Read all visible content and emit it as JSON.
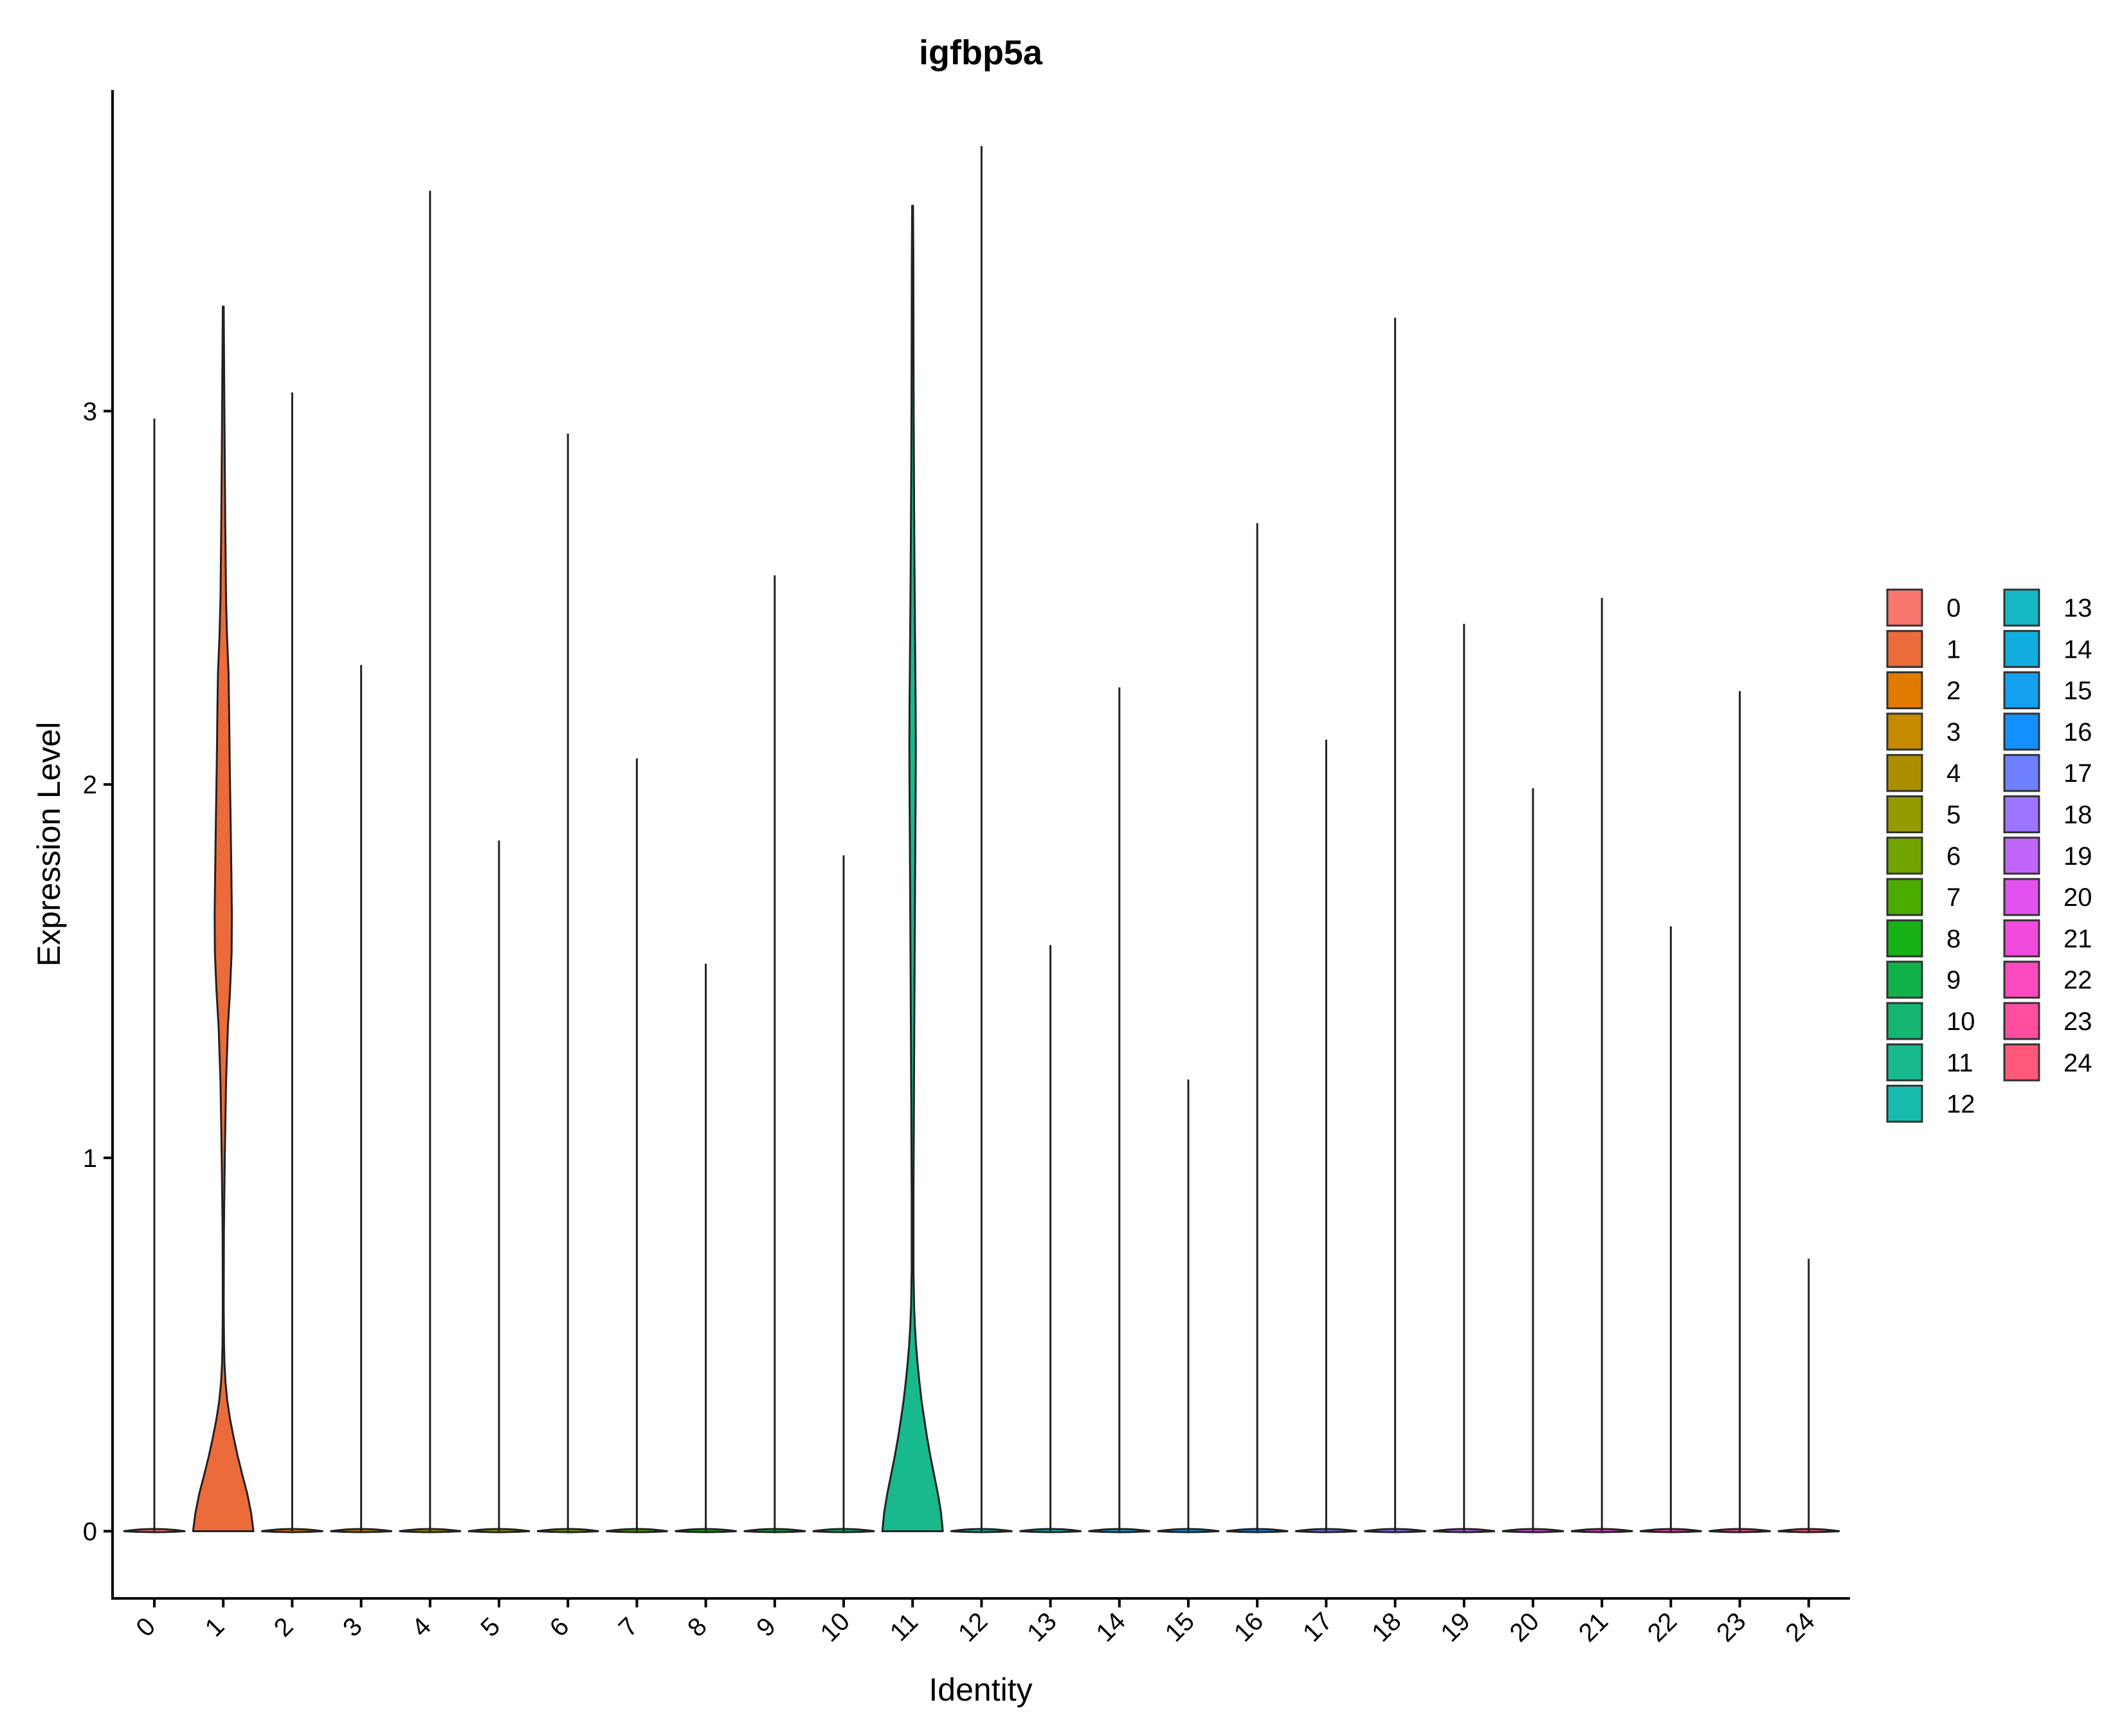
{
  "chart_data": {
    "type": "violin",
    "title": "igfbp5a",
    "xlabel": "Identity",
    "ylabel": "Expression Level",
    "ylim": [
      -0.18,
      3.86
    ],
    "yticks": [
      0,
      1,
      2,
      3
    ],
    "grid": false,
    "legend_position": "right",
    "categories": [
      "0",
      "1",
      "2",
      "3",
      "4",
      "5",
      "6",
      "7",
      "8",
      "9",
      "10",
      "11",
      "12",
      "13",
      "14",
      "15",
      "16",
      "17",
      "18",
      "19",
      "20",
      "21",
      "22",
      "23",
      "24"
    ],
    "max_values": [
      2.98,
      3.28,
      3.05,
      2.32,
      3.59,
      1.85,
      2.94,
      2.07,
      1.52,
      2.56,
      1.81,
      3.55,
      3.71,
      1.57,
      2.26,
      1.21,
      2.7,
      2.12,
      3.25,
      2.43,
      1.99,
      2.5,
      1.62,
      2.25,
      0.73
    ],
    "colors": [
      "#F8766D",
      "#EC6B3B",
      "#E07B00",
      "#C58A00",
      "#AC8F00",
      "#949A00",
      "#72A400",
      "#4CAB00",
      "#17B017",
      "#12B24B",
      "#14B570",
      "#18B98C",
      "#17BBAE",
      "#15B8C4",
      "#11ADDE",
      "#15A0EF",
      "#1390FE",
      "#6E80FF",
      "#9B75FF",
      "#C067FA",
      "#E252F0",
      "#F04ADC",
      "#FB49C0",
      "#FF4EA0",
      "#FF5878"
    ],
    "density": {
      "1": [
        [
          0,
          0.98
        ],
        [
          0.05,
          0.9
        ],
        [
          0.1,
          0.78
        ],
        [
          0.15,
          0.62
        ],
        [
          0.2,
          0.47
        ],
        [
          0.25,
          0.34
        ],
        [
          0.3,
          0.22
        ],
        [
          0.35,
          0.13
        ],
        [
          0.4,
          0.07
        ],
        [
          0.45,
          0.04
        ],
        [
          0.5,
          0.025
        ],
        [
          0.6,
          0.015
        ],
        [
          0.8,
          0.02
        ],
        [
          1.0,
          0.05
        ],
        [
          1.2,
          0.09
        ],
        [
          1.35,
          0.15
        ],
        [
          1.45,
          0.22
        ],
        [
          1.55,
          0.27
        ],
        [
          1.65,
          0.28
        ],
        [
          1.75,
          0.265
        ],
        [
          1.9,
          0.24
        ],
        [
          2.05,
          0.21
        ],
        [
          2.2,
          0.19
        ],
        [
          2.3,
          0.17
        ],
        [
          2.4,
          0.12
        ],
        [
          2.5,
          0.09
        ],
        [
          2.7,
          0.065
        ],
        [
          2.9,
          0.045
        ],
        [
          3.1,
          0.03
        ],
        [
          3.28,
          0.015
        ]
      ],
      "11": [
        [
          0,
          0.98
        ],
        [
          0.05,
          0.92
        ],
        [
          0.1,
          0.82
        ],
        [
          0.15,
          0.7
        ],
        [
          0.2,
          0.58
        ],
        [
          0.25,
          0.47
        ],
        [
          0.3,
          0.38
        ],
        [
          0.35,
          0.29
        ],
        [
          0.4,
          0.22
        ],
        [
          0.45,
          0.16
        ],
        [
          0.5,
          0.11
        ],
        [
          0.55,
          0.075
        ],
        [
          0.6,
          0.05
        ],
        [
          0.7,
          0.03
        ],
        [
          0.9,
          0.03
        ],
        [
          1.2,
          0.045
        ],
        [
          1.5,
          0.065
        ],
        [
          1.8,
          0.085
        ],
        [
          2.0,
          0.1
        ],
        [
          2.1,
          0.105
        ],
        [
          2.2,
          0.1
        ],
        [
          2.4,
          0.08
        ],
        [
          2.6,
          0.06
        ],
        [
          2.8,
          0.045
        ],
        [
          3.0,
          0.035
        ],
        [
          3.2,
          0.03
        ],
        [
          3.4,
          0.025
        ],
        [
          3.55,
          0.015
        ]
      ]
    },
    "legend_entries": [
      "0",
      "1",
      "2",
      "3",
      "4",
      "5",
      "6",
      "7",
      "8",
      "9",
      "10",
      "11",
      "12",
      "13",
      "14",
      "15",
      "16",
      "17",
      "18",
      "19",
      "20",
      "21",
      "22",
      "23",
      "24"
    ]
  }
}
